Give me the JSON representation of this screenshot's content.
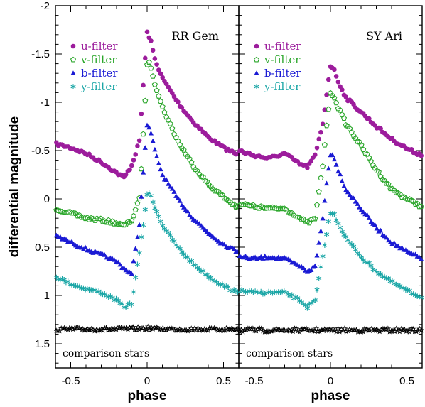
{
  "chart_data": {
    "type": "scatter",
    "ylabel": "differential magnitude",
    "xlabel": "phase",
    "ylim": [
      1.75,
      -2.0
    ],
    "y_inverted": true,
    "xlim": [
      -0.6,
      0.6
    ],
    "y_ticks": [
      "-2",
      "-1.5",
      "-1",
      "-0.5",
      "0",
      "0.5",
      "1",
      "1.5"
    ],
    "y_tick_values": [
      -2,
      -1.5,
      -1,
      -0.5,
      0,
      0.5,
      1,
      1.5
    ],
    "x_ticks": [
      "-0.5",
      "0",
      "0.5"
    ],
    "x_tick_values": [
      -0.5,
      0,
      0.5
    ],
    "legend_placement": "top-left",
    "legend": [
      {
        "name": "u-filter",
        "marker": "filled-circle",
        "color": "#9c1c9c"
      },
      {
        "name": "v-filter",
        "marker": "open-pentagon",
        "color": "#2aa62a"
      },
      {
        "name": "b-filter",
        "marker": "filled-triangle",
        "color": "#1a1ad4"
      },
      {
        "name": "y-filter",
        "marker": "asterisk",
        "color": "#1aa6a6"
      }
    ],
    "comparison_label": "comparison stars",
    "comparison_color": "#000000",
    "panels": [
      {
        "title": "RR Gem",
        "series": [
          {
            "name": "u-filter",
            "x": [
              -0.6,
              -0.5,
              -0.4,
              -0.3,
              -0.2,
              -0.15,
              -0.1,
              -0.05,
              -0.02,
              0,
              0.02,
              0.05,
              0.1,
              0.2,
              0.3,
              0.4,
              0.5,
              0.6
            ],
            "y": [
              -0.57,
              -0.53,
              -0.47,
              -0.38,
              -0.27,
              -0.22,
              -0.35,
              -0.6,
              -1.3,
              -1.72,
              -1.66,
              -1.45,
              -1.25,
              -1.0,
              -0.8,
              -0.64,
              -0.53,
              -0.45
            ]
          },
          {
            "name": "v-filter",
            "x": [
              -0.6,
              -0.5,
              -0.4,
              -0.3,
              -0.2,
              -0.15,
              -0.1,
              -0.05,
              -0.02,
              0,
              0.02,
              0.05,
              0.1,
              0.2,
              0.3,
              0.4,
              0.5,
              0.6
            ],
            "y": [
              0.1,
              0.15,
              0.2,
              0.22,
              0.25,
              0.28,
              0.22,
              0.0,
              -0.8,
              -1.4,
              -1.4,
              -1.2,
              -0.95,
              -0.6,
              -0.35,
              -0.15,
              -0.02,
              0.1
            ]
          },
          {
            "name": "b-filter",
            "x": [
              -0.6,
              -0.5,
              -0.4,
              -0.3,
              -0.2,
              -0.15,
              -0.1,
              -0.05,
              -0.02,
              0,
              0.02,
              0.05,
              0.1,
              0.2,
              0.3,
              0.4,
              0.5,
              0.6
            ],
            "y": [
              0.38,
              0.45,
              0.52,
              0.58,
              0.65,
              0.72,
              0.78,
              0.25,
              -0.4,
              -0.75,
              -0.72,
              -0.5,
              -0.25,
              0.0,
              0.2,
              0.35,
              0.47,
              0.55
            ]
          },
          {
            "name": "y-filter",
            "x": [
              -0.6,
              -0.5,
              -0.4,
              -0.3,
              -0.2,
              -0.15,
              -0.1,
              -0.05,
              -0.02,
              0,
              0.02,
              0.05,
              0.1,
              0.2,
              0.3,
              0.4,
              0.5,
              0.6
            ],
            "y": [
              0.8,
              0.88,
              0.93,
              0.97,
              1.05,
              1.12,
              1.08,
              0.55,
              0.2,
              -0.05,
              -0.05,
              0.08,
              0.27,
              0.5,
              0.67,
              0.8,
              0.9,
              0.98
            ]
          },
          {
            "name": "comparison stars",
            "x": [
              -0.6,
              -0.4,
              -0.2,
              0,
              0.2,
              0.4,
              0.6
            ],
            "y": [
              1.35,
              1.35,
              1.35,
              1.34,
              1.35,
              1.35,
              1.35
            ]
          }
        ]
      },
      {
        "title": "SY Ari",
        "series": [
          {
            "name": "u-filter",
            "x": [
              -0.6,
              -0.5,
              -0.4,
              -0.3,
              -0.2,
              -0.15,
              -0.1,
              -0.05,
              -0.02,
              0,
              0.02,
              0.05,
              0.1,
              0.2,
              0.3,
              0.4,
              0.5,
              0.6
            ],
            "y": [
              -0.5,
              -0.45,
              -0.42,
              -0.47,
              -0.36,
              -0.33,
              -0.45,
              -0.78,
              -1.15,
              -1.38,
              -1.35,
              -1.22,
              -1.05,
              -0.9,
              -0.75,
              -0.62,
              -0.52,
              -0.45
            ]
          },
          {
            "name": "v-filter",
            "x": [
              -0.6,
              -0.5,
              -0.4,
              -0.3,
              -0.2,
              -0.15,
              -0.1,
              -0.05,
              -0.02,
              0,
              0.02,
              0.05,
              0.1,
              0.2,
              0.3,
              0.4,
              0.5,
              0.6
            ],
            "y": [
              0.05,
              0.08,
              0.1,
              0.1,
              0.2,
              0.25,
              0.2,
              -0.35,
              -0.85,
              -1.08,
              -1.08,
              -0.95,
              -0.78,
              -0.55,
              -0.3,
              -0.1,
              0.0,
              0.08
            ]
          },
          {
            "name": "b-filter",
            "x": [
              -0.6,
              -0.5,
              -0.4,
              -0.3,
              -0.2,
              -0.15,
              -0.1,
              -0.05,
              -0.02,
              0,
              0.02,
              0.05,
              0.1,
              0.2,
              0.3,
              0.4,
              0.5,
              0.6
            ],
            "y": [
              0.6,
              0.62,
              0.6,
              0.62,
              0.7,
              0.75,
              0.7,
              0.2,
              -0.25,
              -0.45,
              -0.45,
              -0.3,
              -0.1,
              0.1,
              0.3,
              0.45,
              0.55,
              0.62
            ]
          },
          {
            "name": "y-filter",
            "x": [
              -0.6,
              -0.5,
              -0.4,
              -0.3,
              -0.2,
              -0.15,
              -0.1,
              -0.05,
              -0.02,
              0,
              0.02,
              0.05,
              0.1,
              0.2,
              0.3,
              0.4,
              0.5,
              0.6
            ],
            "y": [
              0.95,
              0.97,
              0.97,
              0.97,
              1.05,
              1.12,
              1.05,
              0.6,
              0.3,
              0.15,
              0.15,
              0.25,
              0.4,
              0.6,
              0.75,
              0.86,
              0.95,
              1.02
            ]
          },
          {
            "name": "comparison stars",
            "x": [
              -0.6,
              -0.4,
              -0.2,
              0,
              0.2,
              0.4,
              0.6
            ],
            "y": [
              1.36,
              1.36,
              1.36,
              1.36,
              1.36,
              1.36,
              1.36
            ]
          }
        ]
      }
    ]
  }
}
